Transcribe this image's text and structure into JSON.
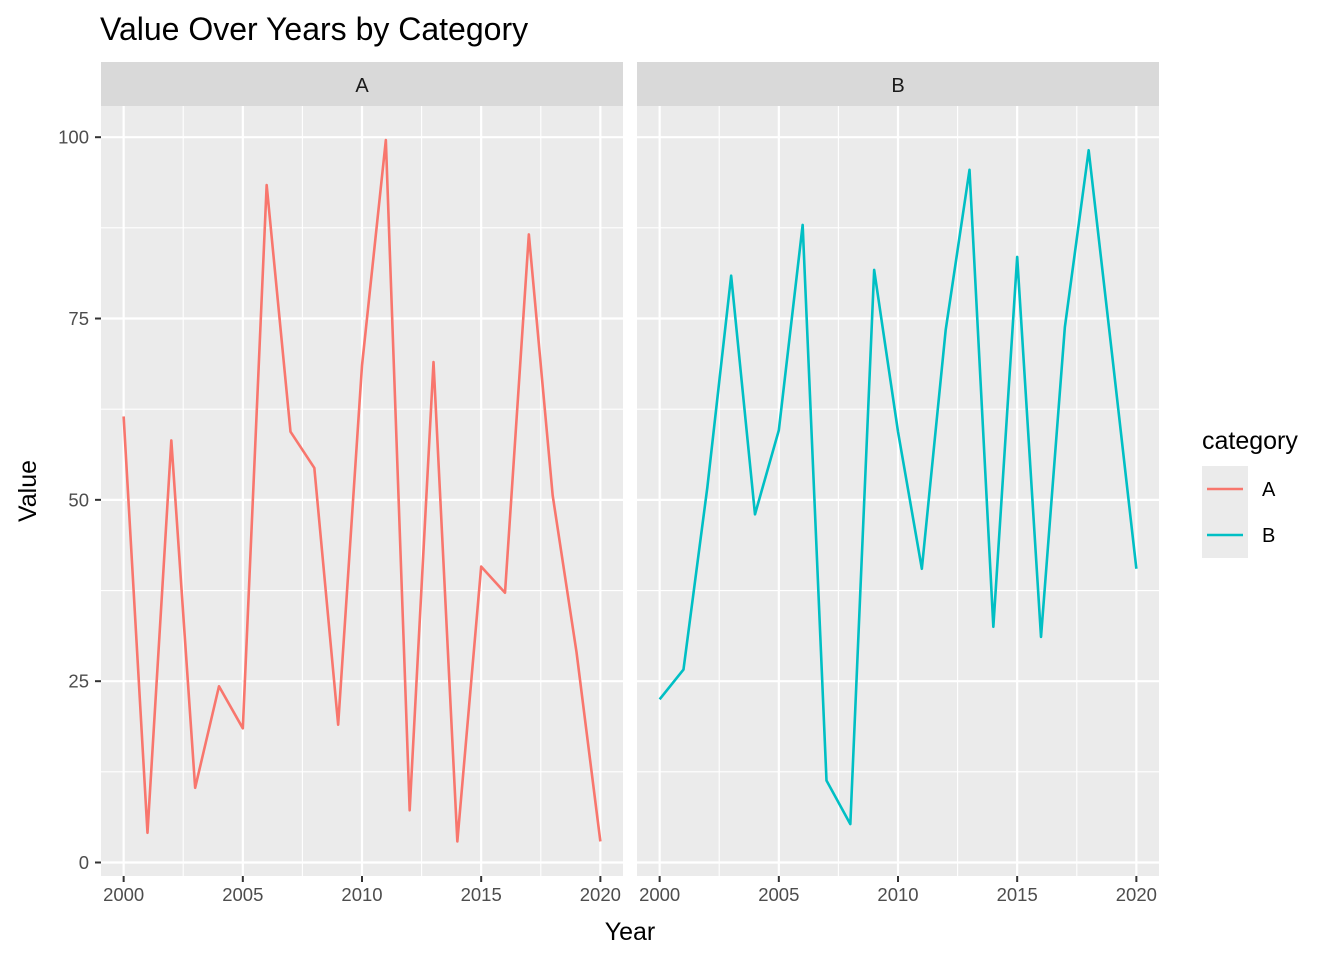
{
  "chart_data": {
    "type": "line",
    "title": "Value Over Years by Category",
    "xlabel": "Year",
    "ylabel": "Value",
    "xlim": [
      1999.05,
      2020.95
    ],
    "ylim": [
      -1.86,
      104.3
    ],
    "x_ticks": [
      2000,
      2005,
      2010,
      2015,
      2020
    ],
    "x_minor": [
      2002.5,
      2007.5,
      2012.5,
      2017.5
    ],
    "y_ticks": [
      0,
      25,
      50,
      75,
      100
    ],
    "y_minor": [
      12.5,
      37.5,
      62.5,
      87.5
    ],
    "grid": true,
    "legend": {
      "title": "category",
      "position": "right"
    },
    "facets": [
      "A",
      "B"
    ],
    "x": [
      2000,
      2001,
      2002,
      2003,
      2004,
      2005,
      2006,
      2007,
      2008,
      2009,
      2010,
      2011,
      2012,
      2013,
      2014,
      2015,
      2016,
      2017,
      2018,
      2019,
      2020
    ],
    "series": [
      {
        "name": "A",
        "color": "#F8766D",
        "values": [
          61.5,
          4.1,
          58.2,
          10.3,
          24.3,
          18.5,
          93.4,
          59.4,
          54.4,
          19.0,
          68.5,
          99.6,
          7.2,
          69.0,
          2.9,
          40.8,
          37.2,
          86.6,
          50.6,
          29.0,
          2.9
        ]
      },
      {
        "name": "B",
        "color": "#00BFC4",
        "values": [
          22.5,
          26.6,
          51.7,
          80.9,
          48.0,
          59.6,
          87.9,
          11.3,
          5.3,
          81.7,
          59.4,
          40.5,
          73.4,
          95.5,
          32.5,
          83.5,
          31.1,
          73.8,
          98.2,
          69.5,
          40.5
        ]
      }
    ]
  }
}
